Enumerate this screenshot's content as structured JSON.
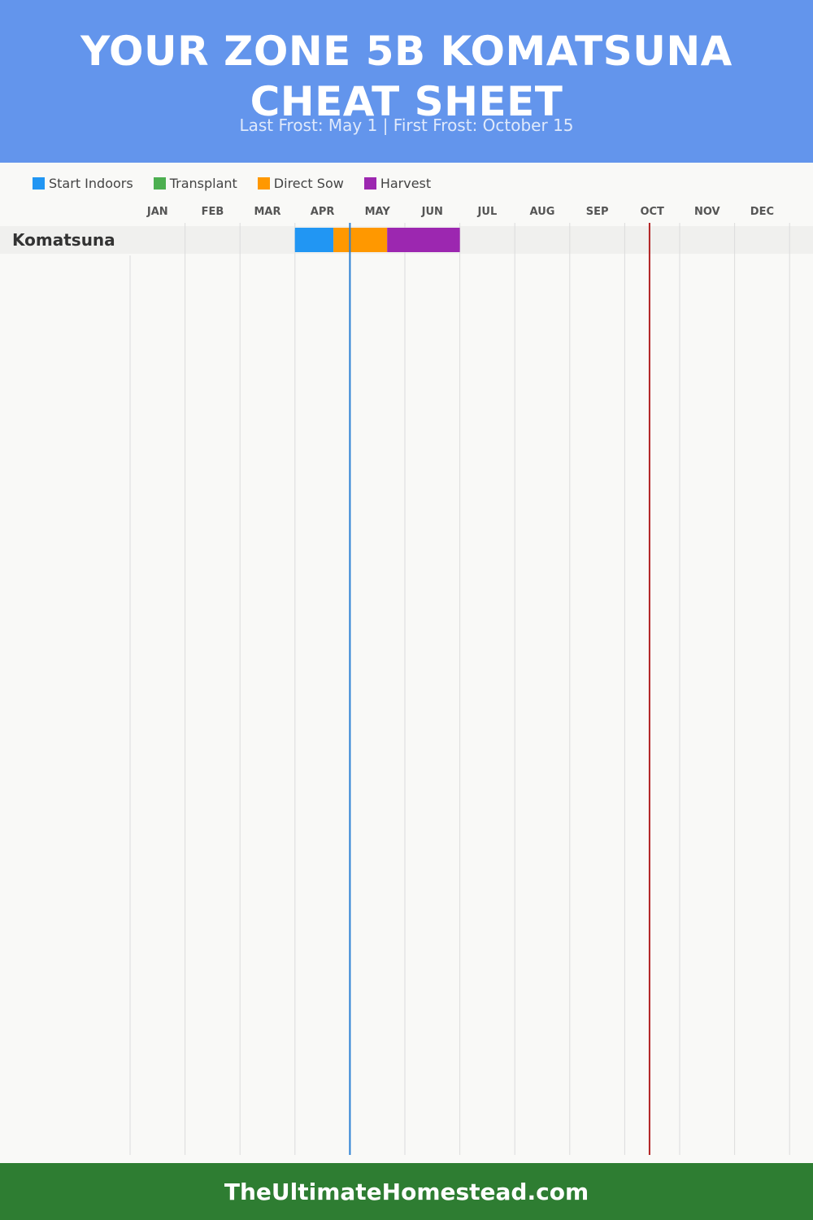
{
  "colors": {
    "header_bg": "#6395ec",
    "footer_bg": "#2e7d32",
    "start_indoors": "#2196f3",
    "transplant": "#4caf50",
    "direct_sow": "#ff9800",
    "harvest": "#9c27b0",
    "last_frost_line": "#2a7fd4",
    "first_frost_line": "#b22222"
  },
  "header": {
    "title": "YOUR ZONE 5B KOMATSUNA CHEAT SHEET",
    "subtitle": "Last Frost: May 1 | First Frost: October 15"
  },
  "legend": [
    {
      "label": "Start Indoors",
      "color": "#2196f3"
    },
    {
      "label": "Transplant",
      "color": "#4caf50"
    },
    {
      "label": "Direct Sow",
      "color": "#ff9800"
    },
    {
      "label": "Harvest",
      "color": "#9c27b0"
    }
  ],
  "chart_data": {
    "type": "gantt",
    "months": [
      "JAN",
      "FEB",
      "MAR",
      "APR",
      "MAY",
      "JUN",
      "JUL",
      "AUG",
      "SEP",
      "OCT",
      "NOV",
      "DEC"
    ],
    "markers": {
      "last_frost": "May 1",
      "first_frost": "October 15"
    },
    "crops": [
      {
        "name": "Komatsuna",
        "periods": [
          {
            "phase": "Start Indoors",
            "start": "Apr 1",
            "end": "Apr 22"
          },
          {
            "phase": "Direct Sow",
            "start": "Apr 22",
            "end": "May 22"
          },
          {
            "phase": "Harvest",
            "start": "May 22",
            "end": "Jul 1"
          }
        ]
      }
    ]
  },
  "footer": {
    "text": "TheUltimateHomestead.com"
  }
}
